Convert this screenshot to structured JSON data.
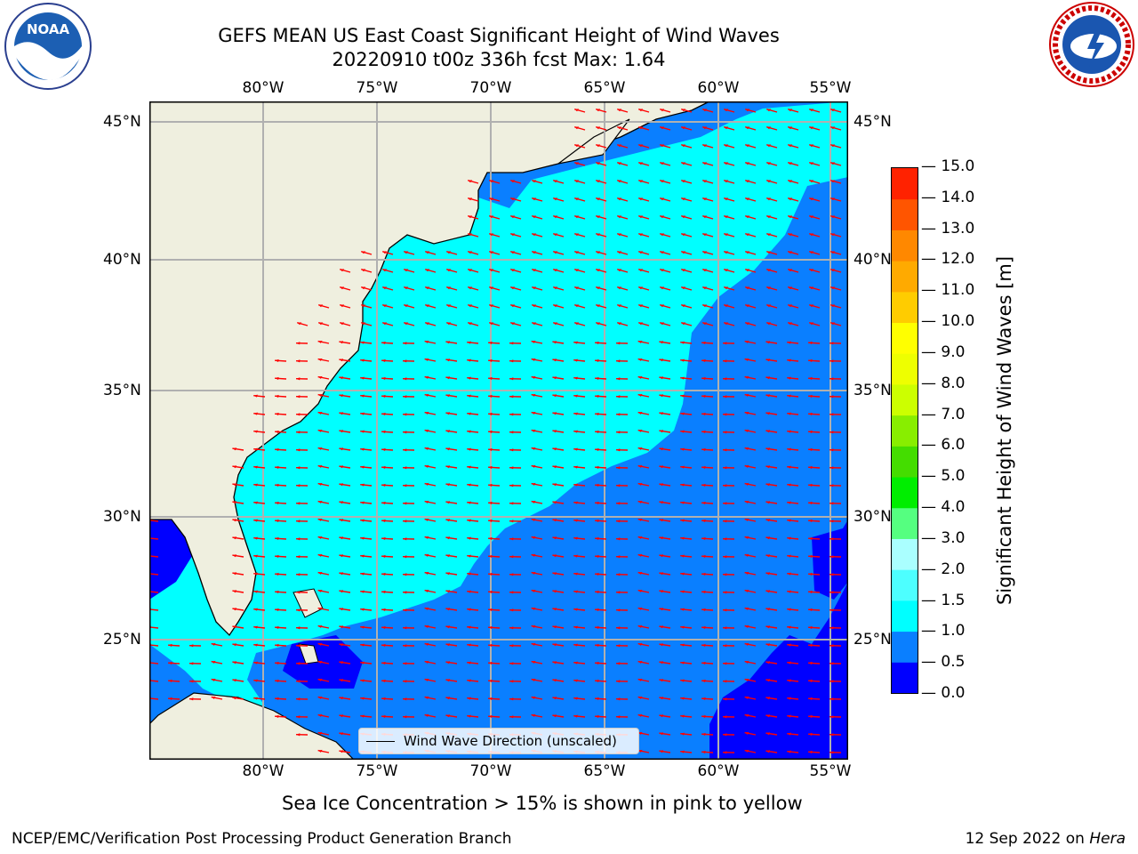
{
  "header": {
    "title_line1": "GEFS MEAN US East Coast Significant Height of Wind Waves",
    "title_line2": "20220910 t00z 336h fcst   Max: 1.64"
  },
  "logos": {
    "left": "noa-logo",
    "right": "national-weather-service-logo"
  },
  "map": {
    "lon_labels": [
      "80°W",
      "75°W",
      "70°W",
      "65°W",
      "60°W",
      "55°W"
    ],
    "lat_labels": [
      "45°N",
      "40°N",
      "35°N",
      "30°N",
      "25°N"
    ],
    "legend_label": "Wind Wave Direction (unscaled)",
    "land_color": "#efefdf",
    "arrow_color": "#ff0000"
  },
  "colorbar": {
    "label": "Significant Height of Wind Waves [m]",
    "ticks": [
      "0.0",
      "0.5",
      "1.0",
      "1.5",
      "2.0",
      "3.0",
      "4.0",
      "5.0",
      "6.0",
      "7.0",
      "8.0",
      "9.0",
      "10.0",
      "11.0",
      "12.0",
      "13.0",
      "14.0",
      "15.0"
    ],
    "colors": [
      "#0000ff",
      "#0a7fff",
      "#00ffff",
      "#4dffff",
      "#aaffff",
      "#55ff80",
      "#00ee00",
      "#44dd00",
      "#88ee00",
      "#ccff00",
      "#eeff00",
      "#ffff00",
      "#ffcc00",
      "#ffaa00",
      "#ff8800",
      "#ff5500",
      "#ff2200"
    ]
  },
  "note": "Sea Ice Concentration > 15% is shown in pink to yellow",
  "footer": {
    "left": "NCEP/EMC/Verification Post Processing Product Generation Branch",
    "right_prefix": "12 Sep 2022 on",
    "right_machine": "Hera"
  }
}
